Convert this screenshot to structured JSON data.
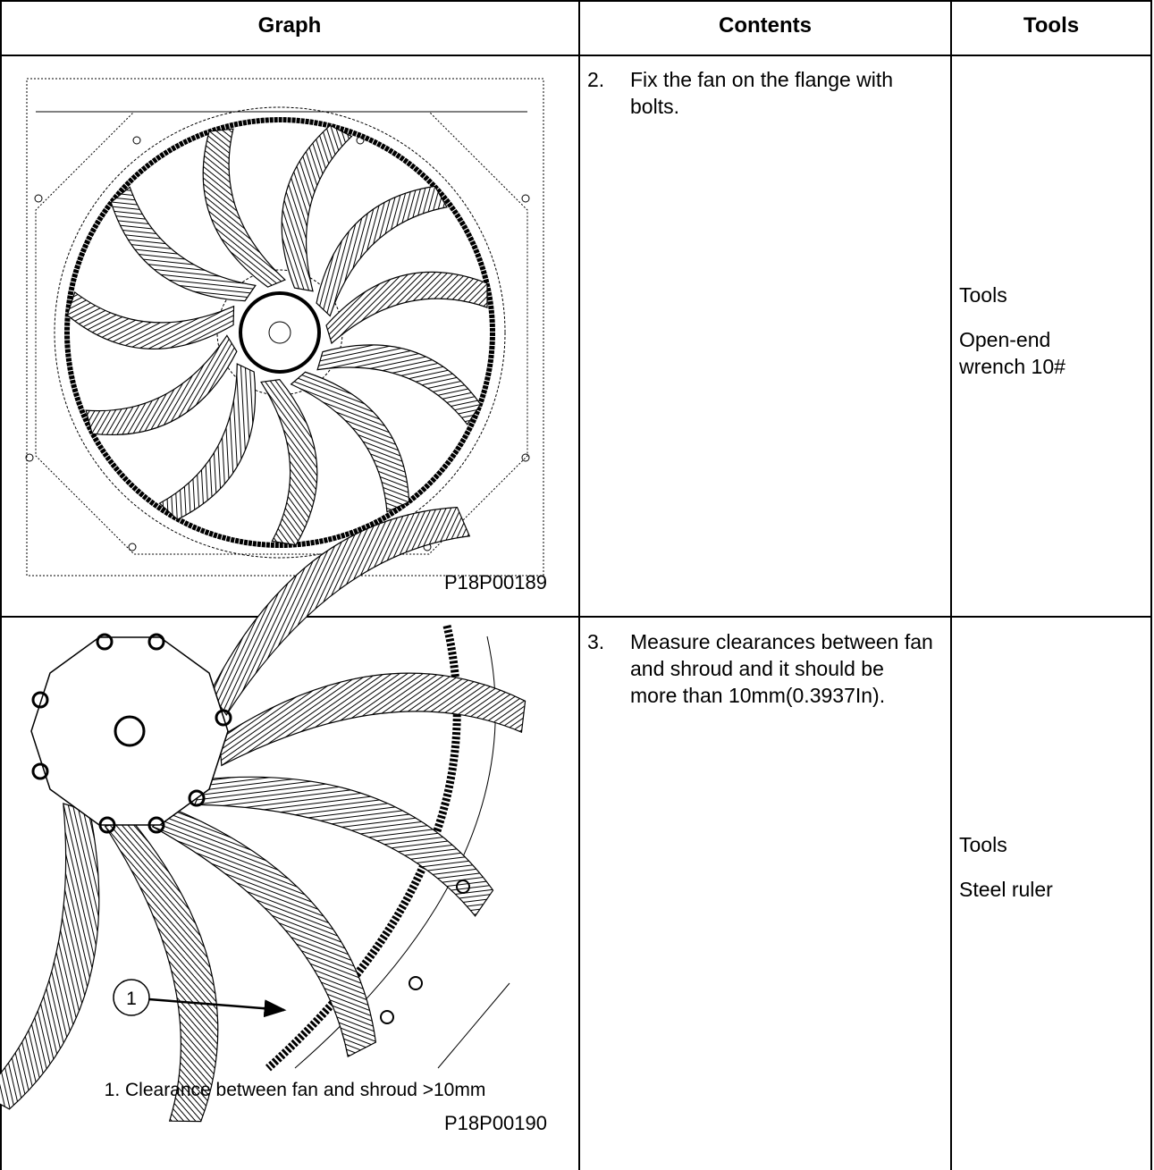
{
  "header": [
    "Graph",
    "Contents",
    "Tools"
  ],
  "rows": [
    {
      "image_label": "P18P00189",
      "step": "2.",
      "content": "Fix the fan on the flange with bolts.",
      "tools_heading": "Tools",
      "tools": "Open-end wrench 10#"
    },
    {
      "callout": "1",
      "caption": "1. Clearance between fan and shroud >10mm",
      "image_label": "P18P00190",
      "step": "3.",
      "content": "Measure clearances between fan and shroud and it should be more than 10mm(0.3937In).",
      "tools_heading": "Tools",
      "tools": "Steel ruler"
    }
  ]
}
